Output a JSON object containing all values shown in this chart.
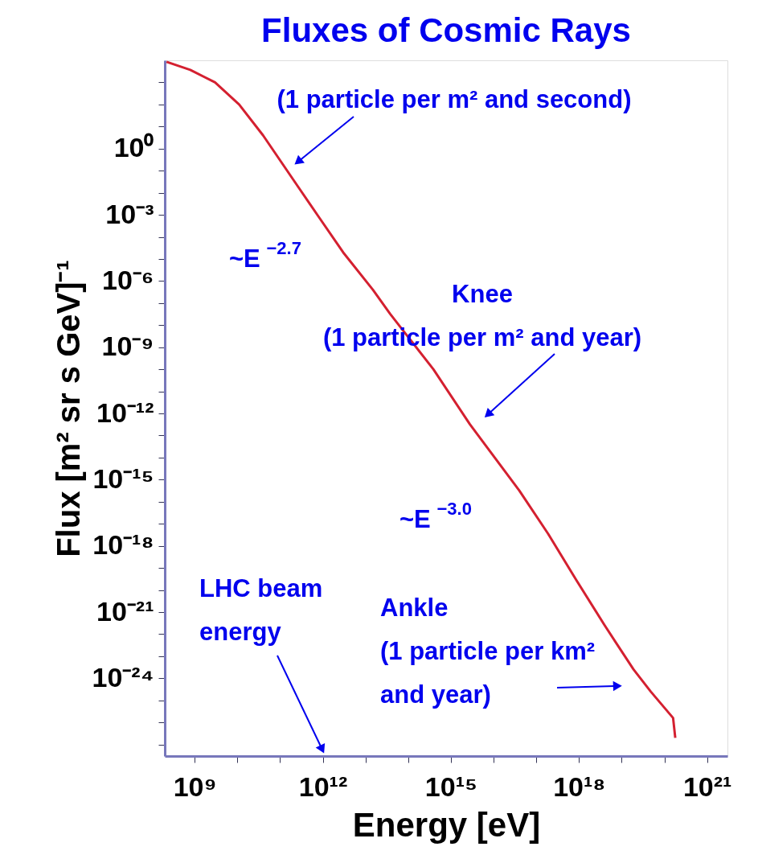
{
  "chart_data": {
    "type": "line",
    "title": "Fluxes of Cosmic Rays",
    "xlabel": "Energy [eV]",
    "ylabel": "Flux [m² sr s GeV]⁻¹",
    "log": "xy",
    "xlim": [
      200000000.0,
      3e+21
    ],
    "ylim": [
      3e-28,
      10000.0
    ],
    "xticks": [
      {
        "value": 1000000000.0,
        "label": "10⁹"
      },
      {
        "value": 10000000000.0,
        "label": null
      },
      {
        "value": 100000000000.0,
        "label": null
      },
      {
        "value": 1000000000000.0,
        "label": "10¹²"
      },
      {
        "value": 10000000000000.0,
        "label": null
      },
      {
        "value": 100000000000000.0,
        "label": null
      },
      {
        "value": 1000000000000000.0,
        "label": "10¹⁵"
      },
      {
        "value": 1e+16,
        "label": null
      },
      {
        "value": 1e+17,
        "label": null
      },
      {
        "value": 1e+18,
        "label": "10¹⁸"
      },
      {
        "value": 1e+19,
        "label": null
      },
      {
        "value": 1e+20,
        "label": null
      },
      {
        "value": 1e+21,
        "label": "10²¹"
      }
    ],
    "yticks": [
      {
        "value": 1000.0,
        "label": null
      },
      {
        "value": 100.0,
        "label": null
      },
      {
        "value": 10.0,
        "label": null
      },
      {
        "value": 1,
        "label": "10⁰"
      },
      {
        "value": 0.1,
        "label": null
      },
      {
        "value": 0.01,
        "label": null
      },
      {
        "value": 0.001,
        "label": "10⁻³"
      },
      {
        "value": 0.0001,
        "label": null
      },
      {
        "value": 1e-05,
        "label": null
      },
      {
        "value": 1e-06,
        "label": "10⁻⁶"
      },
      {
        "value": 1e-07,
        "label": null
      },
      {
        "value": 1e-08,
        "label": null
      },
      {
        "value": 1e-09,
        "label": "10⁻⁹"
      },
      {
        "value": 1e-10,
        "label": null
      },
      {
        "value": 1e-11,
        "label": null
      },
      {
        "value": 1e-12,
        "label": "10⁻¹²"
      },
      {
        "value": 1e-13,
        "label": null
      },
      {
        "value": 1e-14,
        "label": null
      },
      {
        "value": 1e-15,
        "label": "10⁻¹⁵"
      },
      {
        "value": 1e-16,
        "label": null
      },
      {
        "value": 1e-17,
        "label": null
      },
      {
        "value": 1e-18,
        "label": "10⁻¹⁸"
      },
      {
        "value": 1e-19,
        "label": null
      },
      {
        "value": 1e-20,
        "label": null
      },
      {
        "value": 1e-21,
        "label": "10⁻²¹"
      },
      {
        "value": 1e-22,
        "label": null
      },
      {
        "value": 1e-23,
        "label": null
      },
      {
        "value": 1e-24,
        "label": "10⁻²⁴"
      },
      {
        "value": 1e-25,
        "label": null
      },
      {
        "value": 1e-26,
        "label": null
      },
      {
        "value": 1e-27,
        "label": null
      }
    ],
    "series": [
      {
        "color": "#d42030",
        "x": [
          220000000.0,
          790000000.0,
          3000000000.0,
          11000000000.0,
          40000000000.0,
          250000000000.0,
          790000000000.0,
          3000000000000.0,
          15000000000000.0,
          38000000000000.0,
          390000000000000.0,
          2800000000000000.0,
          4e+16,
          1.9e+17,
          8.5e+17,
          4e+18,
          1.9e+19,
          4.8e+19,
          1.6e+20,
          1.8e+20
        ],
        "values": [
          8500,
          3700,
          1000,
          100,
          4.0,
          0.022,
          0.00085,
          2e-05,
          4e-07,
          3.2e-08,
          1e-10,
          3.2e-13,
          3.2e-16,
          3.5e-18,
          3e-20,
          2.5e-22,
          2.5e-24,
          2.5e-25,
          1.6e-26,
          2e-27
        ]
      }
    ],
    "annotations": [
      {
        "text": "(1 particle per m² and second)",
        "x": 280000000000.0,
        "y": 0.28
      },
      "~E $^{−2.7}$",
      {
        "text": "Knee\n(1 particle per m² and year)",
        "x": 7800000000000000.0,
        "y": 1e-12
      },
      "~E $^{−3.0}$",
      "LHC beam\nenergy",
      {
        "text": "Ankle\n(1 particle per km²\nand year)",
        "x": 7.4e+18,
        "y": 4.5e-25
      }
    ]
  }
}
